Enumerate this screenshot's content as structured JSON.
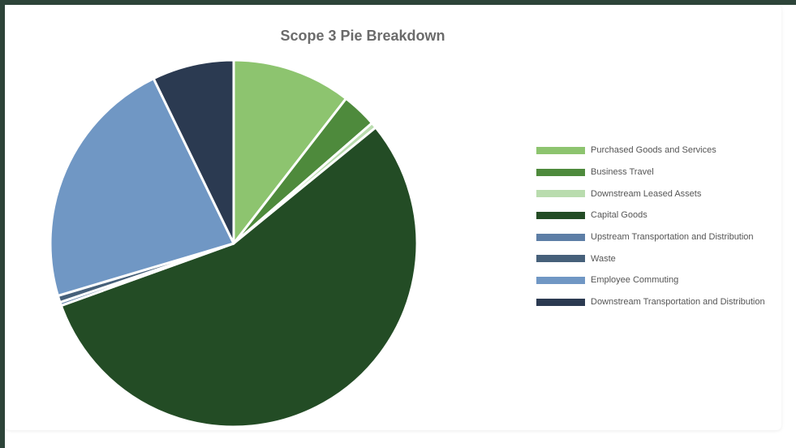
{
  "chart_data": {
    "type": "pie",
    "title": "Scope 3 Pie Breakdown",
    "legend_position": "right",
    "slices": [
      {
        "label": "Purchased Goods and Services",
        "value": 10.5,
        "color": "#8dc46f"
      },
      {
        "label": "Business Travel",
        "value": 3.1,
        "color": "#4e8a3c"
      },
      {
        "label": "Downstream Leased Assets",
        "value": 0.5,
        "color": "#b9dcae"
      },
      {
        "label": "Capital Goods",
        "value": 55.4,
        "color": "#234c25"
      },
      {
        "label": "Upstream Transportation and Distribution",
        "value": 0.3,
        "color": "#5d7ea6"
      },
      {
        "label": "Waste",
        "value": 0.6,
        "color": "#46607a"
      },
      {
        "label": "Employee Commuting",
        "value": 22.4,
        "color": "#7097c4"
      },
      {
        "label": "Downstream Transportation and Distribution",
        "value": 7.2,
        "color": "#2b3a51"
      }
    ]
  }
}
